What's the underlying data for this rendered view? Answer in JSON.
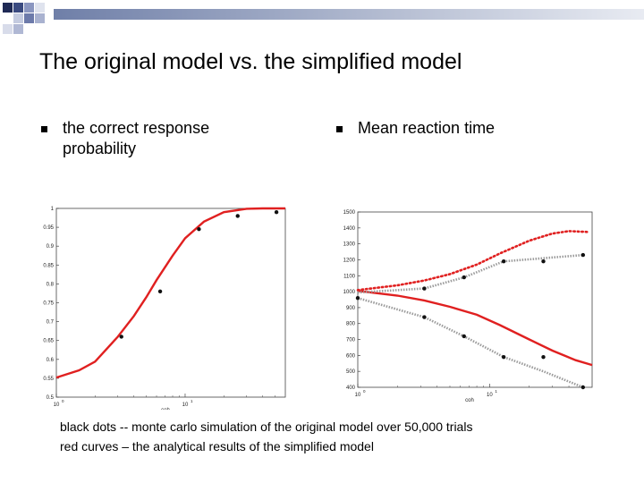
{
  "slide": {
    "title": "The original model vs. the simplified model",
    "bullets": [
      {
        "text": "the correct response probability"
      },
      {
        "text": "Mean reaction time"
      }
    ],
    "captions": [
      "black dots -- monte carlo simulation of the original model over 50,000 trials",
      "red curves – the analytical results of the simplified model"
    ],
    "colors": {
      "red_curve": "#e02020",
      "dots": "#111111",
      "sim_line": "#9a9a9a"
    }
  },
  "chart_data": [
    {
      "type": "line",
      "xlabel": "coh",
      "xscale": "log",
      "xlim": [
        1,
        60
      ],
      "ylim": [
        0.5,
        1
      ],
      "x_tick_labels": [
        "10",
        "10"
      ],
      "x_tick_exps": [
        "0",
        "1"
      ],
      "y_tick_labels": [
        "0.5",
        "0.55",
        "0.6",
        "0.65",
        "0.7",
        "0.75",
        "0.8",
        "0.85",
        "0.9",
        "0.95",
        "1"
      ],
      "series": [
        {
          "style": "red-curve",
          "x": [
            1,
            1.5,
            2,
            3,
            4,
            5,
            6,
            8,
            10,
            14,
            20,
            30,
            40,
            60
          ],
          "y": [
            0.552,
            0.571,
            0.594,
            0.66,
            0.715,
            0.765,
            0.81,
            0.875,
            0.921,
            0.965,
            0.99,
            0.999,
            1.0,
            1.0
          ]
        },
        {
          "style": "black-dots",
          "x": [
            3.2,
            6.4,
            12.8,
            25.6,
            51.2
          ],
          "y": [
            0.66,
            0.78,
            0.945,
            0.98,
            0.99
          ]
        }
      ]
    },
    {
      "type": "line",
      "xlabel": "coh",
      "xscale": "log",
      "xlim": [
        1,
        60
      ],
      "ylim": [
        400,
        1500
      ],
      "x_tick_labels": [
        "10",
        "10"
      ],
      "x_tick_exps": [
        "0",
        "1"
      ],
      "y_tick_labels": [
        "400",
        "500",
        "600",
        "700",
        "800",
        "900",
        "1000",
        "1100",
        "1200",
        "1300",
        "1400",
        "1500"
      ],
      "series": [
        {
          "style": "red-dotted",
          "x": [
            1,
            2,
            3.2,
            5,
            8,
            12,
            20,
            30,
            40,
            55
          ],
          "y": [
            1010,
            1040,
            1070,
            1110,
            1170,
            1240,
            1320,
            1365,
            1380,
            1375
          ]
        },
        {
          "style": "red-solid",
          "x": [
            1,
            2,
            3.2,
            5,
            8,
            12,
            20,
            30,
            45,
            60
          ],
          "y": [
            1005,
            975,
            945,
            905,
            855,
            790,
            700,
            630,
            570,
            540
          ]
        },
        {
          "style": "sim-upper",
          "x": [
            1,
            3.2,
            6.4,
            12.8,
            25.6,
            51.2
          ],
          "y": [
            995,
            1020,
            1090,
            1190,
            1210,
            1230
          ]
        },
        {
          "style": "sim-lower",
          "x": [
            1,
            3.2,
            6.4,
            12.8,
            25.6,
            51.2
          ],
          "y": [
            960,
            840,
            720,
            590,
            500,
            400
          ]
        },
        {
          "style": "black-dots",
          "x": [
            1,
            3.2,
            6.4,
            12.8,
            25.6,
            51.2,
            3.2,
            6.4,
            12.8,
            25.6,
            51.2
          ],
          "y": [
            960,
            1020,
            1090,
            1190,
            1190,
            1230,
            840,
            720,
            590,
            590,
            400
          ]
        }
      ]
    }
  ]
}
